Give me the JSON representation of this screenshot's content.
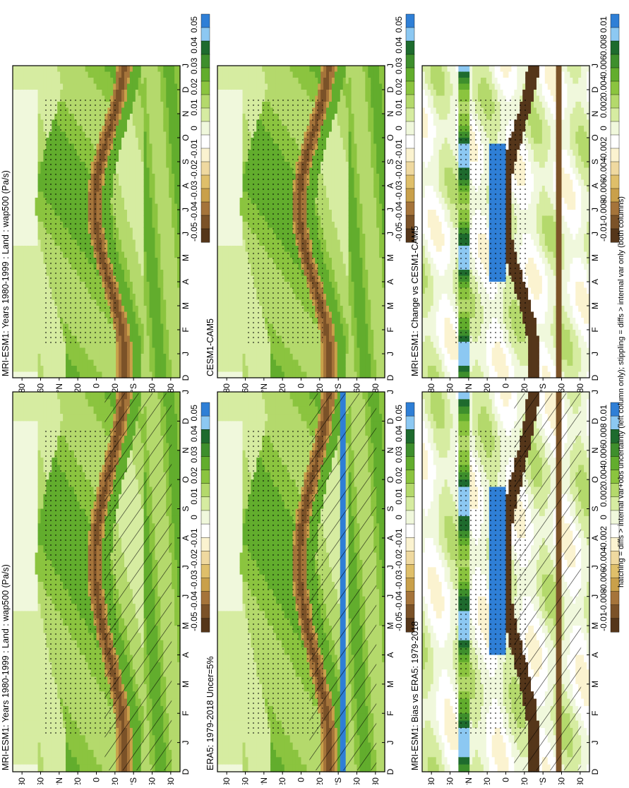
{
  "footer_note": "hatching = diffs > internal var+obs uncertainty (left column only); stippling = diffs > internal var only (both columns)",
  "time_axis": [
    "D",
    "J",
    "F",
    "M",
    "A",
    "M",
    "J",
    "J",
    "A",
    "S",
    "O",
    "N",
    "D",
    "J"
  ],
  "lat_axis": [
    "80",
    "60",
    "°N",
    "20",
    "0",
    "20",
    "°S",
    "60",
    "80"
  ],
  "colorbars": {
    "main": {
      "colors": [
        "#2f7fd6",
        "#8cc8f2",
        "#1e6b2e",
        "#3e8f2c",
        "#62ad2d",
        "#8bc43f",
        "#b4d96c",
        "#d6eca1",
        "#f0f8dc",
        "#ffffff",
        "#fbf3d0",
        "#efd9a0",
        "#dfbf6a",
        "#c9a04a",
        "#a5743a",
        "#7b5228",
        "#55361a"
      ],
      "labels": [
        "0.05",
        "0.04",
        "0.03",
        "0.02",
        "0.01",
        "0",
        "-0.01",
        "-0.02",
        "-0.03",
        "-0.04",
        "-0.05"
      ]
    },
    "diff": {
      "colors": [
        "#2f7fd6",
        "#8cc8f2",
        "#1e6b2e",
        "#3e8f2c",
        "#62ad2d",
        "#8bc43f",
        "#b4d96c",
        "#d6eca1",
        "#f0f8dc",
        "#ffffff",
        "#fbf3d0",
        "#efd9a0",
        "#dfbf6a",
        "#c9a04a",
        "#a5743a",
        "#7b5228",
        "#55361a"
      ],
      "labels": [
        "0.01",
        "0.008",
        "0.006",
        "0.004",
        "0.002",
        "0",
        "-0.002",
        "-0.004",
        "-0.006",
        "-0.008",
        "-0.01"
      ]
    }
  },
  "chart_data": [
    {
      "type": "heatmap",
      "title": "MRI-ESM1: Years 1980-1999 : Land : wap500 (Pa/s)",
      "colorbar": "main",
      "pattern": "model",
      "hatching": true,
      "stippling": true
    },
    {
      "type": "heatmap",
      "title": "MRI-ESM1: Years 1980-1999 : Land : wap500 (Pa/s)",
      "colorbar": "main",
      "pattern": "model",
      "hatching": false,
      "stippling": true
    },
    {
      "type": "heatmap",
      "title": "ERA5: 1979-2018 Uncer=5%",
      "colorbar": "main",
      "pattern": "obs",
      "hatching": true,
      "stippling": true
    },
    {
      "type": "heatmap",
      "title": "CESM1-CAM5",
      "colorbar": "main",
      "pattern": "model",
      "hatching": false,
      "stippling": true
    },
    {
      "type": "heatmap",
      "title": "MRI-ESM1: Bias vs ERA5: 1979-2018",
      "colorbar": "diff",
      "pattern": "diff",
      "hatching": true,
      "stippling": true
    },
    {
      "type": "heatmap",
      "title": "MRI-ESM1: Change vs CESM1-CAM5",
      "colorbar": "diff",
      "pattern": "diff",
      "hatching": false,
      "stippling": true
    }
  ]
}
